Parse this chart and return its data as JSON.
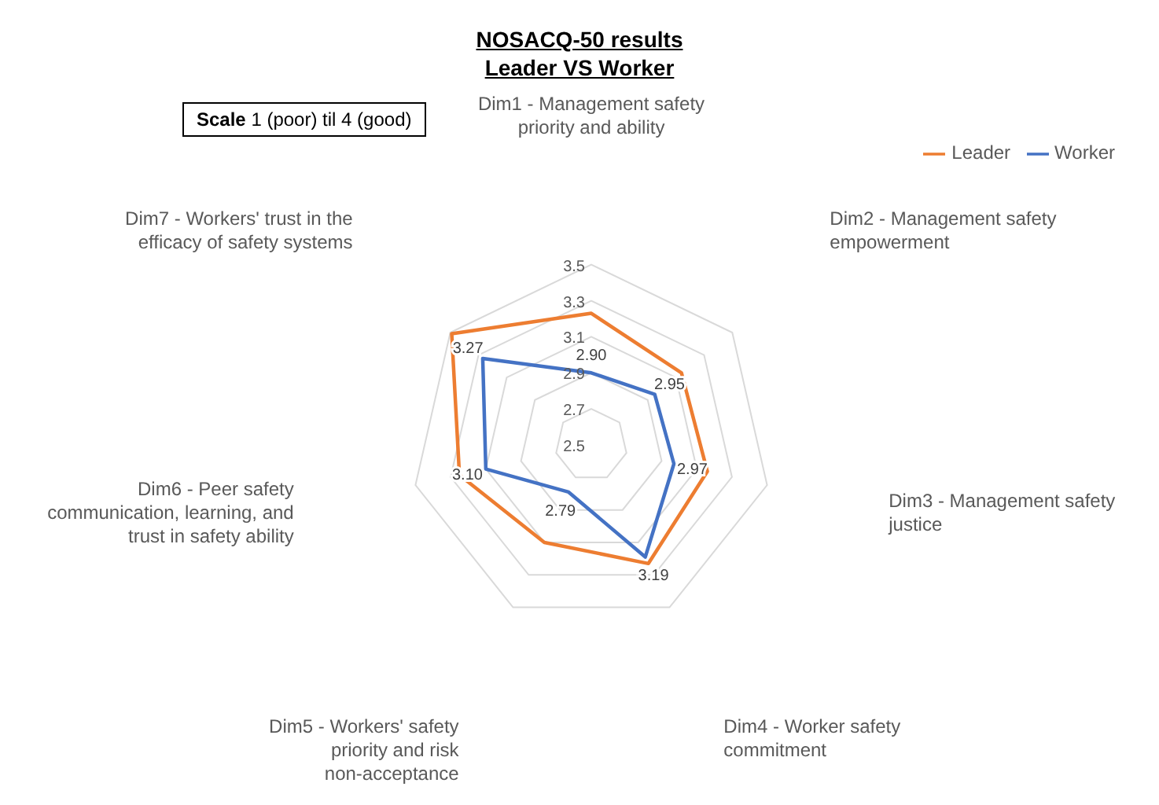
{
  "chart_data": {
    "type": "radar",
    "title": "NOSACQ-50 results",
    "subtitle": "Leader VS Worker",
    "categories": [
      "Dim1 - Management safety priority and ability",
      "Dim2 - Management safety empowerment",
      "Dim3 - Management safety justice",
      "Dim4 - Worker safety commitment",
      "Dim5 - Workers' safety priority and risk non-acceptance",
      "Dim6 - Peer safety communication, learning, and trust in safety ability",
      "Dim7 - Workers' trust in the efficacy of safety systems"
    ],
    "series": [
      {
        "name": "Leader",
        "color": "#ed7d31",
        "values": [
          3.23,
          3.14,
          3.16,
          3.23,
          3.1,
          3.25,
          3.49
        ]
      },
      {
        "name": "Worker",
        "color": "#4472c4",
        "values": [
          2.9,
          2.95,
          2.97,
          3.19,
          2.79,
          3.1,
          3.27
        ],
        "value_labels": [
          "2.90",
          "2.95",
          "2.97",
          "3.19",
          "2.79",
          "3.10",
          "3.27"
        ]
      }
    ],
    "ylim": [
      2.5,
      3.5
    ],
    "yticks": [
      2.5,
      2.7,
      2.9,
      3.1,
      3.3,
      3.5
    ],
    "grid": true,
    "legend": "top right",
    "marker": "none",
    "line_style": "solid",
    "annotations": [
      "Scale 1 (poor) til 4 (good)"
    ]
  }
}
